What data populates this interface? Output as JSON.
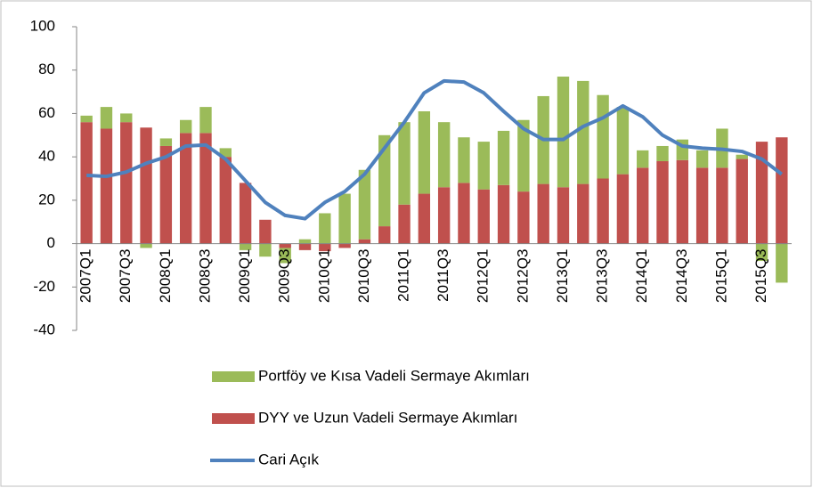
{
  "chart_data": {
    "type": "bar",
    "categories": [
      "2007Q1",
      null,
      "2007Q3",
      null,
      "2008Q1",
      null,
      "2008Q3",
      null,
      "2009Q1",
      null,
      "2009Q3",
      null,
      "2010Q1",
      null,
      "2010Q3",
      null,
      "2011Q1",
      null,
      "2011Q3",
      null,
      "2012Q1",
      null,
      "2012Q3",
      null,
      "2013Q1",
      null,
      "2013Q3",
      null,
      "2014Q1",
      null,
      "2014Q3",
      null,
      "2015Q1",
      null,
      "2015Q3",
      null
    ],
    "series": [
      {
        "name": "Portföy ve Kısa Vadeli Sermaye Akımları",
        "color": "#9bbb59",
        "type": "bar",
        "values": [
          3,
          10,
          4,
          -2,
          3.5,
          6,
          12,
          4,
          -3,
          -6,
          -7,
          2,
          14,
          23,
          32,
          42,
          38,
          38,
          30,
          21,
          22,
          25,
          33,
          40.5,
          51,
          47.5,
          38.5,
          31,
          8,
          7,
          9.5,
          8,
          18,
          2,
          -8,
          -18
        ]
      },
      {
        "name": "DYY ve Uzun Vadeli Sermaye Akımları",
        "color": "#c0504d",
        "type": "bar",
        "values": [
          56,
          53,
          56,
          53.5,
          45,
          51,
          51,
          40,
          28,
          11,
          -2,
          -3,
          -3.5,
          -2,
          2,
          8,
          18,
          23,
          26,
          28,
          25,
          27,
          24,
          27.5,
          26,
          27.5,
          30,
          32,
          35,
          38,
          38.5,
          35,
          35,
          39,
          47,
          49
        ]
      },
      {
        "name": "Cari Açık",
        "color": "#4f81bd",
        "type": "line",
        "values": [
          31.5,
          31,
          33,
          37,
          40,
          45,
          45.5,
          39,
          29,
          19,
          13,
          11.5,
          19,
          24,
          32,
          44,
          56,
          69.5,
          75,
          74.5,
          69.5,
          61,
          53,
          48,
          48,
          54,
          58,
          63.5,
          58.5,
          50,
          45,
          44,
          43.5,
          42.5,
          39,
          32
        ]
      }
    ],
    "ylim": [
      -40,
      100
    ],
    "yticks": [
      -40,
      -20,
      0,
      20,
      40,
      60,
      80,
      100
    ],
    "grid": false,
    "legend": "bottom"
  }
}
